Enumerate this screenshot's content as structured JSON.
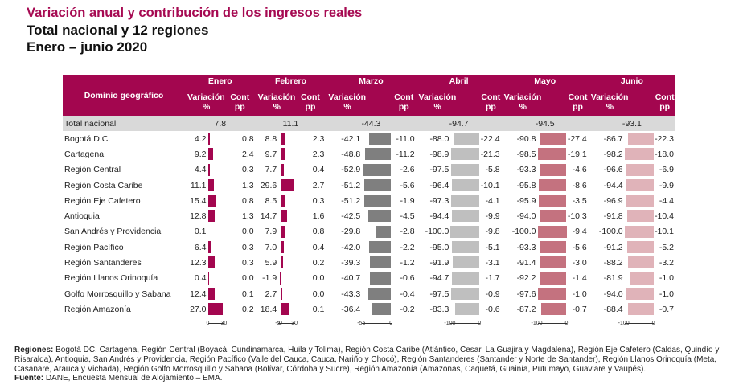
{
  "header": {
    "title": "Variación anual y contribución de los ingresos reales",
    "subtitle": "Total nacional y 12 regiones",
    "period": "Enero – junio 2020"
  },
  "table": {
    "domain_header": "Dominio geográfico",
    "months": [
      "Enero",
      "Febrero",
      "Marzo",
      "Abril",
      "Mayo",
      "Junio"
    ],
    "var_label": "Variación",
    "cont_label": "Cont",
    "pct_label": "%",
    "pp_label": "pp",
    "bar_colors": [
      "#a3064f",
      "#a3064f",
      "#7f7f7f",
      "#bfbfbf",
      "#c4727f",
      "#e0b3b9"
    ],
    "total": {
      "name": "Total nacional",
      "var": [
        "7.8",
        "11.1",
        "-44.3",
        "-94.7",
        "-94.5",
        "-93.1"
      ]
    },
    "rows": [
      {
        "name": "Bogotá D.C.",
        "var": [
          "4.2",
          "8.8",
          "-42.1",
          "-88.0",
          "-90.8",
          "-86.7"
        ],
        "cont": [
          "0.8",
          "2.3",
          "-11.0",
          "-22.4",
          "-27.4",
          "-22.3"
        ]
      },
      {
        "name": "Cartagena",
        "var": [
          "9.2",
          "9.7",
          "-48.8",
          "-98.9",
          "-98.5",
          "-98.2"
        ],
        "cont": [
          "2.4",
          "2.3",
          "-11.2",
          "-21.3",
          "-19.1",
          "-18.0"
        ]
      },
      {
        "name": "Región Central",
        "var": [
          "4.4",
          "7.7",
          "-52.9",
          "-97.5",
          "-93.3",
          "-96.6"
        ],
        "cont": [
          "0.3",
          "0.4",
          "-2.6",
          "-5.8",
          "-4.6",
          "-6.9"
        ]
      },
      {
        "name": "Región Costa Caribe",
        "var": [
          "11.1",
          "29.6",
          "-51.2",
          "-96.4",
          "-95.8",
          "-94.4"
        ],
        "cont": [
          "1.3",
          "2.7",
          "-5.6",
          "-10.1",
          "-8.6",
          "-9.9"
        ]
      },
      {
        "name": "Región Eje Cafetero",
        "var": [
          "15.4",
          "8.5",
          "-51.2",
          "-97.3",
          "-95.9",
          "-96.9"
        ],
        "cont": [
          "0.8",
          "0.3",
          "-1.9",
          "-4.1",
          "-3.5",
          "-4.4"
        ]
      },
      {
        "name": "Antioquia",
        "var": [
          "12.8",
          "14.7",
          "-42.5",
          "-94.4",
          "-94.0",
          "-91.8"
        ],
        "cont": [
          "1.3",
          "1.6",
          "-4.5",
          "-9.9",
          "-10.3",
          "-10.4"
        ]
      },
      {
        "name": "San Andrés y Providencia",
        "var": [
          "0.1",
          "7.9",
          "-29.8",
          "-100.0",
          "-100.0",
          "-100.0"
        ],
        "cont": [
          "0.0",
          "0.8",
          "-2.8",
          "-9.8",
          "-9.4",
          "-10.1"
        ]
      },
      {
        "name": "Región Pacífico",
        "var": [
          "6.4",
          "7.0",
          "-42.0",
          "-95.0",
          "-93.3",
          "-91.2"
        ],
        "cont": [
          "0.3",
          "0.4",
          "-2.2",
          "-5.1",
          "-5.6",
          "-5.2"
        ]
      },
      {
        "name": "Región Santanderes",
        "var": [
          "12.3",
          "5.9",
          "-39.3",
          "-91.9",
          "-91.4",
          "-88.2"
        ],
        "cont": [
          "0.3",
          "0.2",
          "-1.2",
          "-3.1",
          "-3.0",
          "-3.2"
        ]
      },
      {
        "name": "Región Llanos Orinoquía",
        "var": [
          "0.4",
          "-1.9",
          "-40.7",
          "-94.7",
          "-92.2",
          "-81.9"
        ],
        "cont": [
          "0.0",
          "0.0",
          "-0.6",
          "-1.7",
          "-1.4",
          "-1.0"
        ]
      },
      {
        "name": "Golfo Morrosquillo y Sabana",
        "var": [
          "12.4",
          "2.7",
          "-43.3",
          "-97.5",
          "-97.6",
          "-94.0"
        ],
        "cont": [
          "0.1",
          "0.0",
          "-0.4",
          "-0.9",
          "-1.0",
          "-1.0"
        ]
      },
      {
        "name": "Región Amazonía",
        "var": [
          "27.0",
          "18.4",
          "-36.4",
          "-83.3",
          "-87.2",
          "-88.4"
        ],
        "cont": [
          "0.2",
          "0.1",
          "-0.2",
          "-0.6",
          "-0.7",
          "-0.7"
        ]
      }
    ],
    "axes": [
      {
        "ticks": [
          "0",
          "30"
        ],
        "min": 0,
        "max": 30
      },
      {
        "ticks": [
          "-5",
          "0",
          "30"
        ],
        "min": -5,
        "max": 30
      },
      {
        "ticks": [
          "-55",
          "0"
        ],
        "min": -55,
        "max": 0
      },
      {
        "ticks": [
          "-100",
          "0"
        ],
        "min": -100,
        "max": 0
      },
      {
        "ticks": [
          "-100",
          "0"
        ],
        "min": -100,
        "max": 0
      },
      {
        "ticks": [
          "-100",
          "0"
        ],
        "min": -100,
        "max": 0
      }
    ]
  },
  "footer": {
    "regions_label": "Regiones:",
    "regions_text": "Bogotá DC, Cartagena, Región Central (Boyacá, Cundinamarca, Huila y Tolima), Región Costa Caribe (Atlántico, Cesar, La Guajira y Magdalena), Región Eje Cafetero (Caldas, Quindío y Risaralda), Antioquia, San Andrés y Providencia, Región Pacífico (Valle del Cauca, Cauca, Nariño y Chocó), Región Santanderes (Santander y Norte de Santander), Región Llanos Orinoquía (Meta, Casanare, Arauca y Vichada), Región Golfo Morrosquillo y Sabana (Bolívar, Córdoba y Sucre), Región Amazonía (Amazonas, Caquetá, Guainía, Putumayo, Guaviare y Vaupés).",
    "source_label": "Fuente:",
    "source_text": "DANE, Encuesta Mensual de Alojamiento – EMA."
  }
}
